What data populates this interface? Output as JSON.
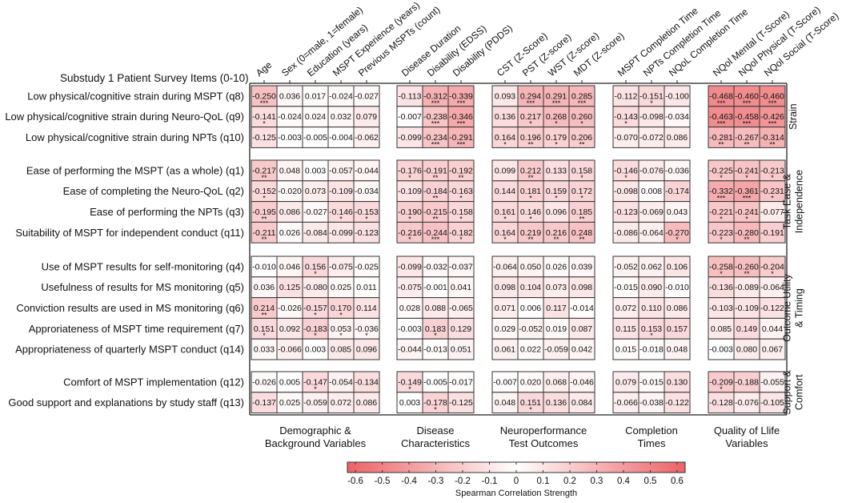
{
  "chart_data": {
    "type": "heatmap",
    "title": "Substudy 1 Patient Survey Items (0-10)",
    "columns": [
      "Age",
      "Sex (0=male, 1=female)",
      "Education (years)",
      "MSPT Experience (years)",
      "Previous MSPTs (count)",
      "Disease Duration",
      "Disability (EDSS)",
      "Disability (PDDS)",
      "CST (Z-Score)",
      "PST (Z-score)",
      "WST (Z-score)",
      "MDT (Z-score)",
      "MSPT Completion Time",
      "NPTs Completion Time",
      "NQoL Completion Time",
      "NQol Mental (T-Score)",
      "NQol Physical (T-Score)",
      "NQol Social (T-Score)"
    ],
    "column_groups": [
      {
        "label": [
          "Demographic &",
          "Background Variables"
        ],
        "count": 5
      },
      {
        "label": [
          "Disease",
          "Characteristics"
        ],
        "count": 3
      },
      {
        "label": [
          "Neuroperformance",
          "Test Outcomes"
        ],
        "count": 4
      },
      {
        "label": [
          "Completion",
          "Times"
        ],
        "count": 3
      },
      {
        "label": [
          "Quality of Llife",
          "Variables"
        ],
        "count": 3
      }
    ],
    "row_groups": [
      {
        "label": [
          "Strain"
        ],
        "rows": [
          {
            "label": "Low physical/cognitive strain during MSPT (q8)",
            "values": [
              -0.25,
              0.036,
              0.017,
              -0.024,
              -0.027,
              -0.113,
              -0.312,
              -0.339,
              0.093,
              0.294,
              0.291,
              0.285,
              -0.112,
              -0.151,
              -0.1,
              -0.468,
              -0.46,
              -0.46
            ],
            "stars": [
              "***",
              "",
              "",
              "",
              "",
              "",
              "***",
              "***",
              "",
              "***",
              "***",
              "***",
              "",
              "*",
              "",
              "***",
              "***",
              "***"
            ]
          },
          {
            "label": "Low physical/cognitive strain during Neuro-QoL (q9)",
            "values": [
              -0.141,
              -0.024,
              0.024,
              0.032,
              0.079,
              -0.007,
              -0.238,
              -0.346,
              0.136,
              0.217,
              0.268,
              0.26,
              -0.143,
              -0.098,
              -0.034,
              -0.463,
              -0.458,
              -0.426
            ],
            "stars": [
              "*",
              "",
              "",
              "",
              "",
              "",
              "***",
              "***",
              "",
              "*",
              "*",
              "*",
              "*",
              "",
              "",
              "***",
              "***",
              "***"
            ]
          },
          {
            "label": "Low physical/cognitive strain during NPTs (q10)",
            "values": [
              -0.125,
              -0.003,
              -0.005,
              -0.004,
              -0.062,
              -0.099,
              -0.234,
              -0.291,
              0.164,
              0.196,
              0.179,
              0.206,
              -0.07,
              -0.072,
              0.086,
              -0.281,
              -0.267,
              -0.314
            ],
            "stars": [
              "",
              "",
              "",
              "",
              "",
              "",
              "***",
              "***",
              "*",
              "**",
              "*",
              "**",
              "",
              "",
              "",
              "**",
              "**",
              "**"
            ]
          }
        ]
      },
      {
        "label": [
          "Task Ease &",
          "Independence"
        ],
        "rows": [
          {
            "label": "Ease of performing the MSPT (as a whole) (q1)",
            "values": [
              -0.217,
              0.048,
              0.003,
              -0.057,
              -0.044,
              -0.176,
              -0.191,
              -0.192,
              0.099,
              0.212,
              0.133,
              0.158,
              -0.146,
              -0.076,
              -0.036,
              -0.225,
              -0.241,
              -0.213
            ],
            "stars": [
              "**",
              "",
              "",
              "",
              "",
              "*",
              "**",
              "**",
              "",
              "**",
              "",
              "*",
              "*",
              "",
              "",
              "*",
              "*",
              "*"
            ]
          },
          {
            "label": "Ease of completing the Neuro-QoL (q2)",
            "values": [
              -0.152,
              -0.02,
              0.073,
              -0.109,
              -0.034,
              -0.109,
              -0.184,
              -0.163,
              0.144,
              0.181,
              0.159,
              0.172,
              -0.098,
              0.008,
              -0.174,
              -0.332,
              -0.361,
              -0.231
            ],
            "stars": [
              "*",
              "",
              "",
              "",
              "",
              "",
              "**",
              "*",
              "",
              "*",
              "*",
              "*",
              "",
              "",
              "",
              "***",
              "***",
              "*"
            ]
          },
          {
            "label": "Ease of performing the NPTs (q3)",
            "values": [
              -0.195,
              0.086,
              -0.027,
              -0.146,
              -0.153,
              -0.19,
              -0.215,
              -0.158,
              0.161,
              0.146,
              0.096,
              0.185,
              -0.123,
              -0.069,
              0.043,
              -0.221,
              -0.241,
              -0.077
            ],
            "stars": [
              "**",
              "",
              "",
              "*",
              "*",
              "*",
              "**",
              "*",
              "*",
              "*",
              "",
              "**",
              "",
              "",
              "",
              "*",
              "*",
              ""
            ]
          },
          {
            "label": "Suitability of MSPT for independent conduct (q11)",
            "values": [
              -0.211,
              0.026,
              -0.084,
              -0.099,
              -0.123,
              -0.216,
              -0.244,
              -0.182,
              0.164,
              0.219,
              0.216,
              0.248,
              -0.086,
              -0.064,
              -0.27,
              -0.223,
              -0.28,
              -0.191
            ],
            "stars": [
              "**",
              "",
              "",
              "",
              "",
              "*",
              "***",
              "*",
              "*",
              "**",
              "**",
              "**",
              "",
              "",
              "*",
              "*",
              "**",
              ""
            ]
          }
        ]
      },
      {
        "label": [
          "Outcome Utility",
          "& Timing"
        ],
        "rows": [
          {
            "label": "Use of MSPT results for self-monitoring (q4)",
            "values": [
              -0.01,
              0.046,
              0.156,
              -0.075,
              -0.025,
              -0.099,
              -0.032,
              -0.037,
              -0.064,
              0.05,
              0.026,
              0.039,
              -0.052,
              0.062,
              0.106,
              -0.258,
              -0.26,
              -0.204
            ],
            "stars": [
              "",
              "",
              "*",
              "",
              "",
              "",
              "",
              "",
              "",
              "",
              "",
              "",
              "",
              "",
              "",
              "*",
              "**",
              "*"
            ]
          },
          {
            "label": "Usefulness of results for MS monitoring (q5)",
            "values": [
              0.036,
              0.125,
              -0.08,
              0.025,
              0.011,
              -0.075,
              -0.001,
              0.041,
              0.098,
              0.104,
              0.073,
              0.098,
              -0.015,
              0.09,
              -0.01,
              -0.136,
              -0.089,
              -0.064
            ],
            "stars": [
              "",
              "",
              "",
              "",
              "",
              "",
              "",
              "",
              "",
              "",
              "",
              "",
              "",
              "",
              "",
              "",
              "",
              ""
            ]
          },
          {
            "label": "Conviction results are used in MS monitoring (q6)",
            "values": [
              0.214,
              -0.026,
              -0.157,
              0.17,
              0.114,
              0.028,
              0.088,
              -0.065,
              0.071,
              0.006,
              0.117,
              -0.014,
              0.072,
              0.11,
              0.086,
              -0.103,
              -0.109,
              -0.122
            ],
            "stars": [
              "**",
              "",
              "*",
              "*",
              "",
              "",
              "",
              "",
              "",
              "",
              "",
              "",
              "",
              "",
              "",
              "",
              "",
              ""
            ]
          },
          {
            "label": "Approriateness of MSPT time requirement (q7)",
            "values": [
              0.151,
              0.092,
              -0.183,
              0.053,
              -0.036,
              -0.003,
              0.183,
              0.129,
              0.029,
              -0.052,
              0.019,
              0.087,
              0.115,
              0.153,
              0.157,
              0.085,
              0.149,
              0.044
            ],
            "stars": [
              "*",
              "",
              "*",
              "*",
              "*",
              "",
              "*",
              "",
              "",
              "",
              "",
              "",
              "",
              "*",
              "",
              "",
              "",
              ""
            ]
          },
          {
            "label": "Appropriateness of quarterly MSPT conduct (q14)",
            "values": [
              0.033,
              -0.066,
              0.003,
              0.085,
              0.096,
              -0.044,
              -0.013,
              0.051,
              0.061,
              0.022,
              -0.059,
              0.042,
              0.015,
              -0.018,
              0.048,
              -0.003,
              0.08,
              0.067
            ],
            "stars": [
              "",
              "",
              "",
              "",
              "",
              "",
              "",
              "",
              "",
              "",
              "",
              "",
              "",
              "",
              "",
              "",
              "",
              ""
            ]
          }
        ]
      },
      {
        "label": [
          "Support &",
          "Comfort"
        ],
        "rows": [
          {
            "label": "Comfort of MSPT implementation (q12)",
            "values": [
              -0.026,
              0.005,
              -0.147,
              -0.054,
              -0.134,
              -0.149,
              -0.005,
              -0.017,
              -0.007,
              0.02,
              0.068,
              -0.046,
              0.079,
              -0.015,
              0.13,
              -0.209,
              -0.188,
              -0.055
            ],
            "stars": [
              "",
              "",
              "*",
              "",
              "",
              "*",
              "",
              "",
              "",
              "",
              "",
              "",
              "",
              "",
              "",
              "*",
              "",
              ""
            ]
          },
          {
            "label": "Good support and explanations by study staff (q13)",
            "values": [
              -0.137,
              0.025,
              -0.059,
              0.072,
              0.086,
              0.003,
              -0.178,
              -0.125,
              0.048,
              0.151,
              0.136,
              0.084,
              -0.066,
              -0.038,
              -0.122,
              -0.128,
              -0.076,
              -0.105
            ],
            "stars": [
              "",
              "",
              "",
              "",
              "",
              "",
              "*",
              "",
              "",
              "*",
              "",
              "",
              "",
              "",
              "",
              "",
              "",
              ""
            ]
          }
        ]
      }
    ],
    "colorbar": {
      "label": "Spearman Correlation Strength",
      "range": [
        -0.63,
        0.63
      ],
      "ticks": [
        "-0.6",
        "-0.5",
        "-0.4",
        "-0.3",
        "-0.2",
        "-0.1",
        "0",
        "0.1",
        "0.2",
        "0.3",
        "0.4",
        "0.5",
        "0.6"
      ],
      "color_zero": "#ffffff",
      "color_extreme": "#ec6266"
    }
  }
}
